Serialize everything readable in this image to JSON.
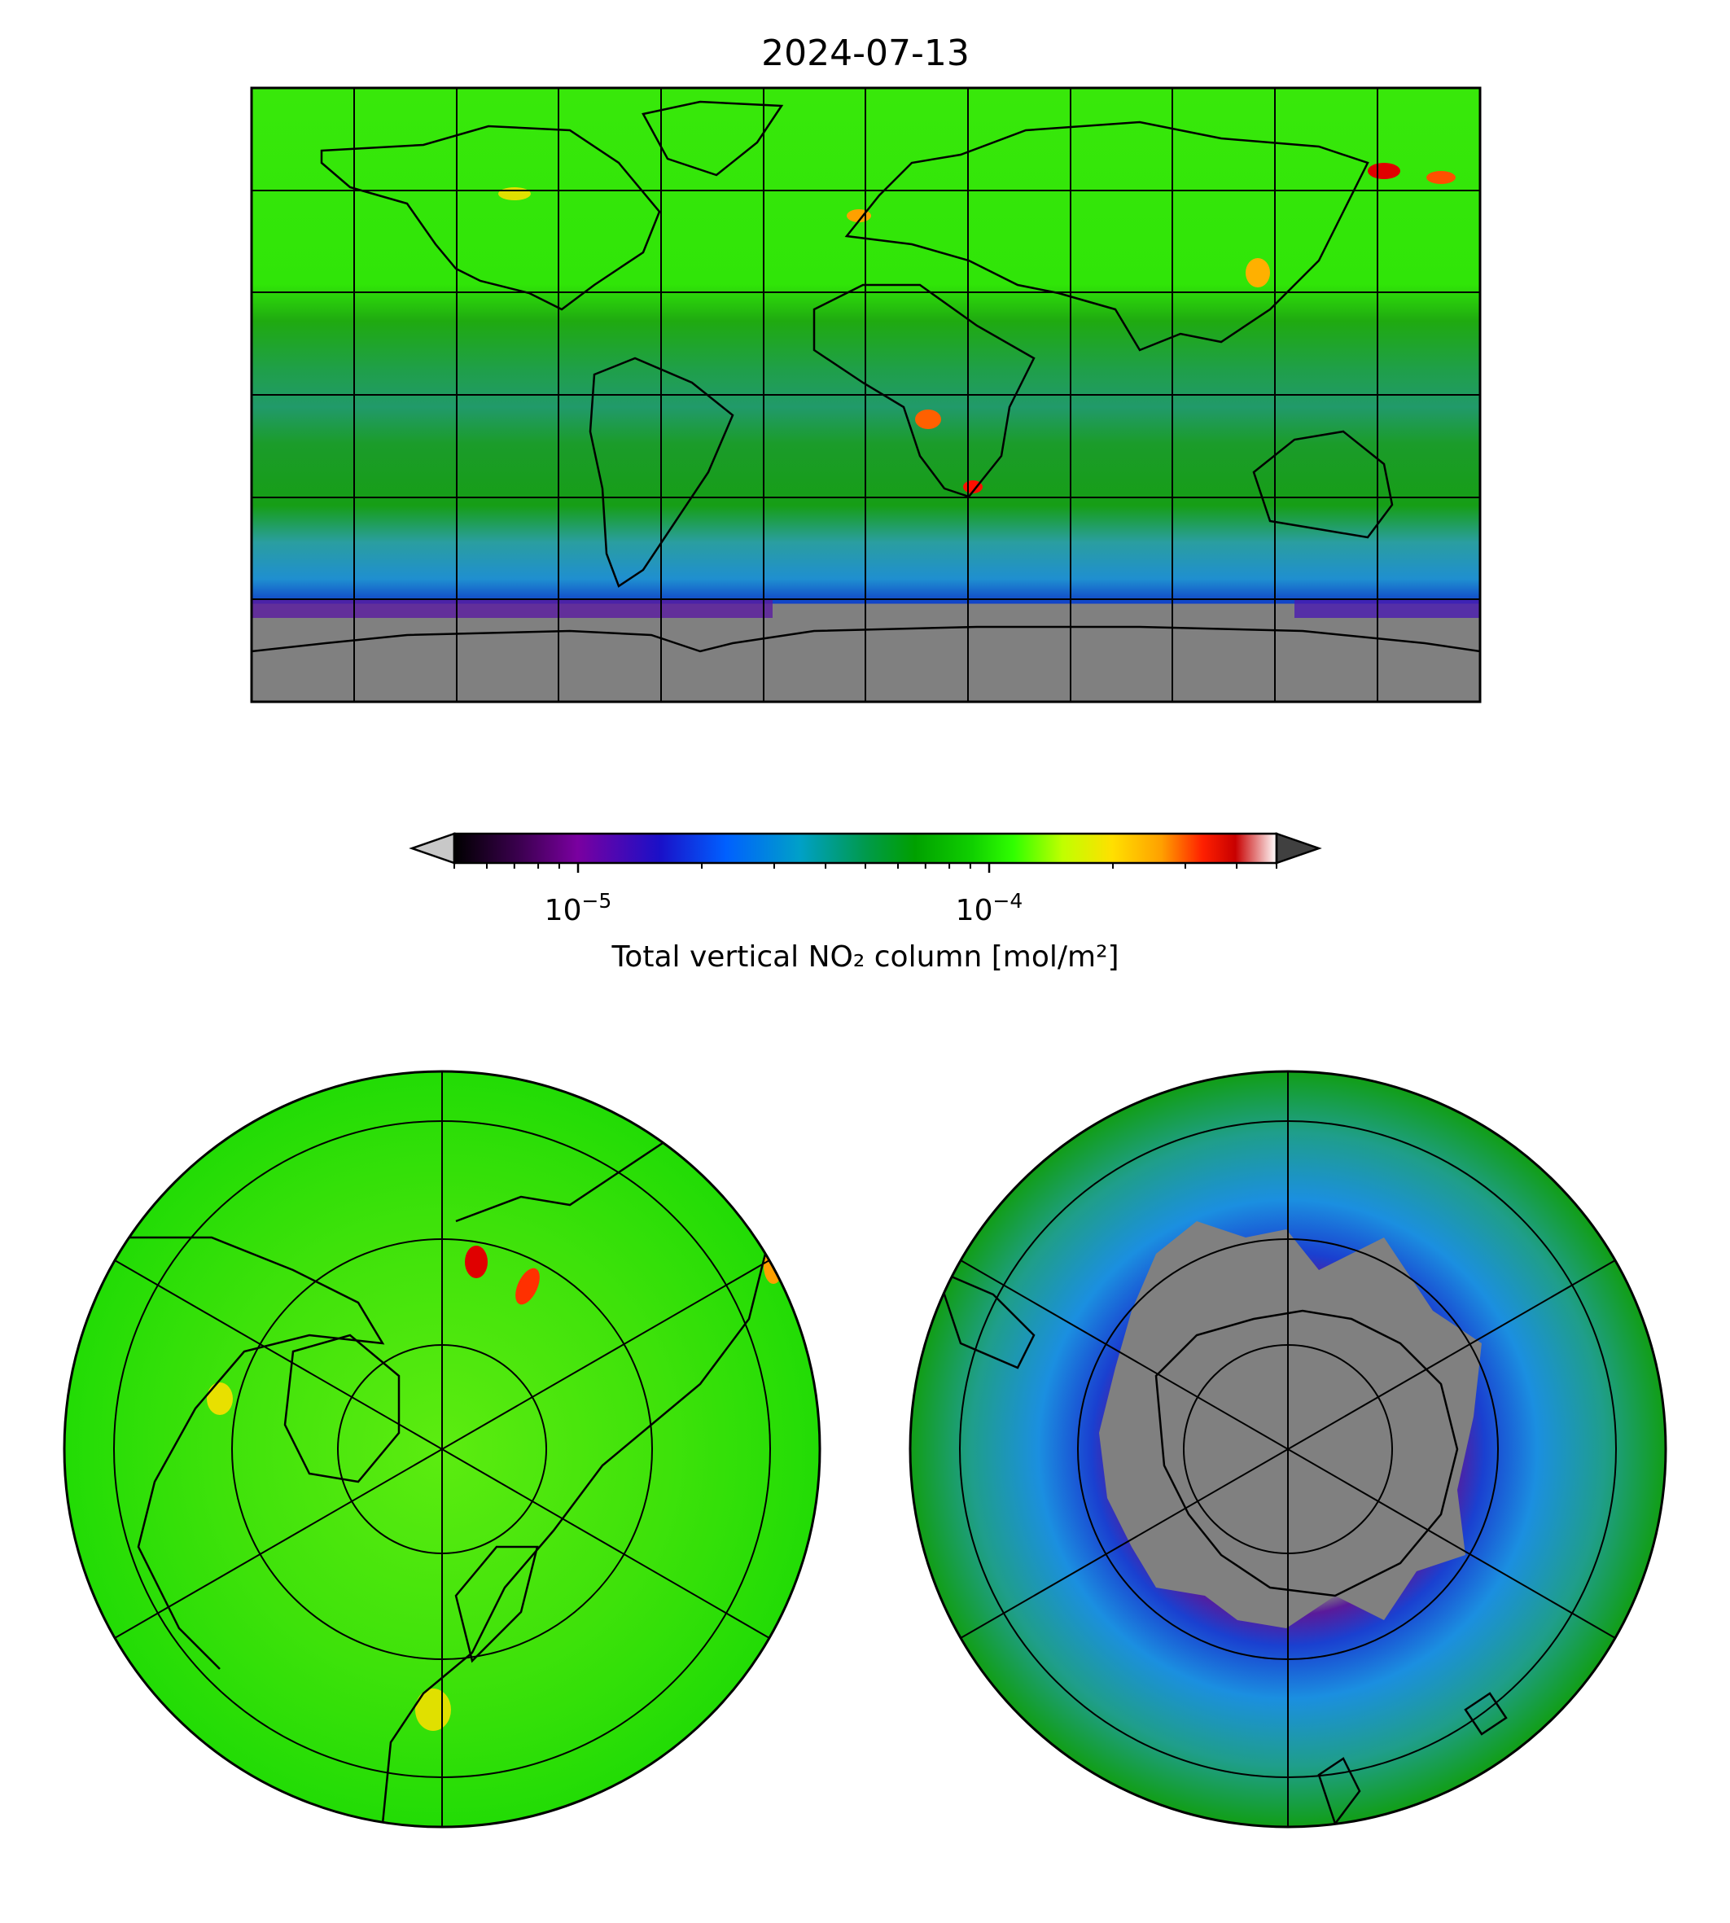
{
  "figure": {
    "title": "2024-07-13"
  },
  "colorbar": {
    "label": "Total vertical NO₂ column [mol/m²]",
    "scale": "log",
    "range": [
      5e-06,
      0.0005
    ],
    "major_ticks": [
      {
        "value": 1e-05,
        "base": "10",
        "exp": "−5"
      },
      {
        "value": 0.0001,
        "base": "10",
        "exp": "−4"
      }
    ],
    "extend": "both",
    "under_color": "#c8c8c8",
    "over_color": "#404040",
    "colormap_stops": [
      [
        "#000000",
        0.0
      ],
      [
        "#3c0050",
        0.08
      ],
      [
        "#7a00a0",
        0.15
      ],
      [
        "#1a10c8",
        0.25
      ],
      [
        "#0060ff",
        0.33
      ],
      [
        "#00a0c8",
        0.42
      ],
      [
        "#009a4c",
        0.5
      ],
      [
        "#00a000",
        0.56
      ],
      [
        "#10d000",
        0.63
      ],
      [
        "#30ff00",
        0.68
      ],
      [
        "#c0ff00",
        0.74
      ],
      [
        "#ffe000",
        0.8
      ],
      [
        "#ffa000",
        0.86
      ],
      [
        "#ff2000",
        0.91
      ],
      [
        "#c80000",
        0.95
      ],
      [
        "#ffffff",
        1.0
      ]
    ]
  },
  "maps": [
    {
      "name": "global",
      "projection": "plate-carree"
    },
    {
      "name": "north-polar",
      "projection": "north-polar-stereographic"
    },
    {
      "name": "south-polar",
      "projection": "south-polar-stereographic"
    }
  ],
  "colors": {
    "background_field": "#2fea05",
    "no_data": "#808080"
  }
}
